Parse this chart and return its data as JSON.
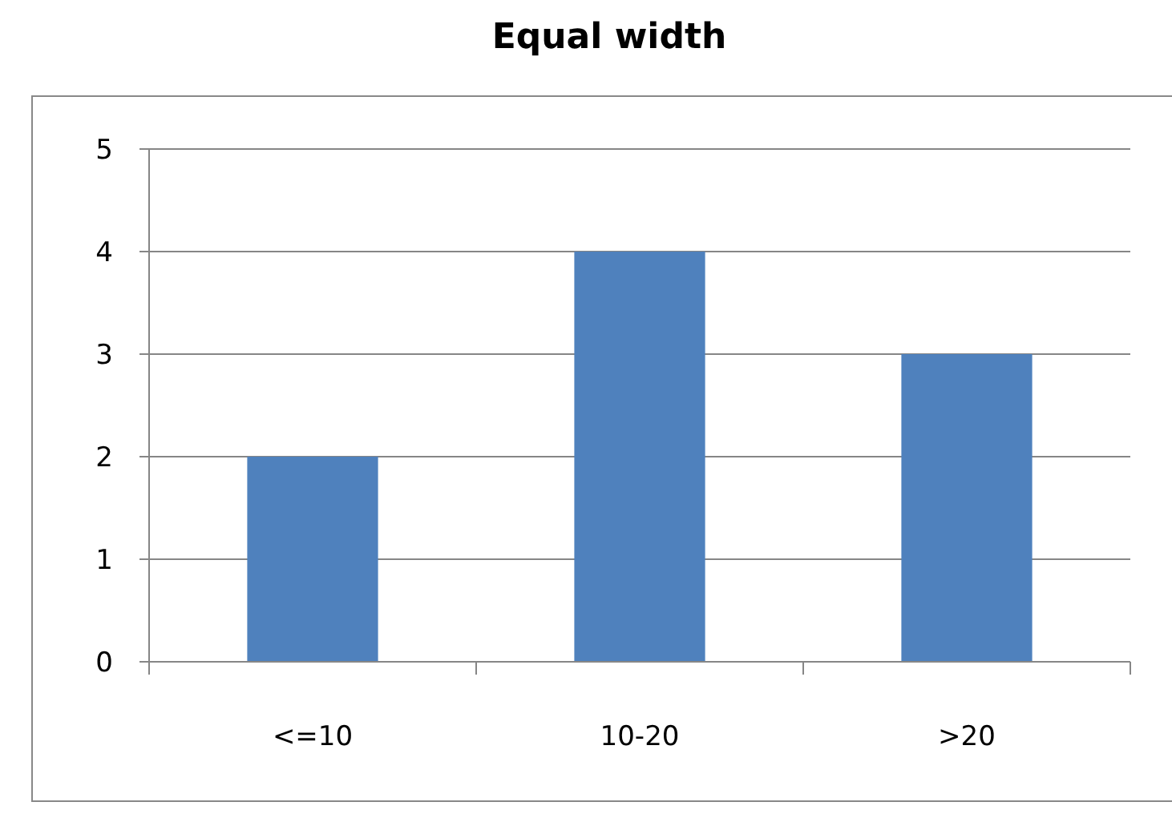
{
  "chart_data": {
    "type": "bar",
    "title": "Equal width",
    "categories": [
      "<=10",
      "10-20",
      ">20"
    ],
    "values": [
      2,
      4,
      3
    ],
    "color": "#4f81bd",
    "ylim": [
      0,
      5
    ],
    "yticks": [
      0,
      1,
      2,
      3,
      4,
      5
    ],
    "grid": "y"
  }
}
